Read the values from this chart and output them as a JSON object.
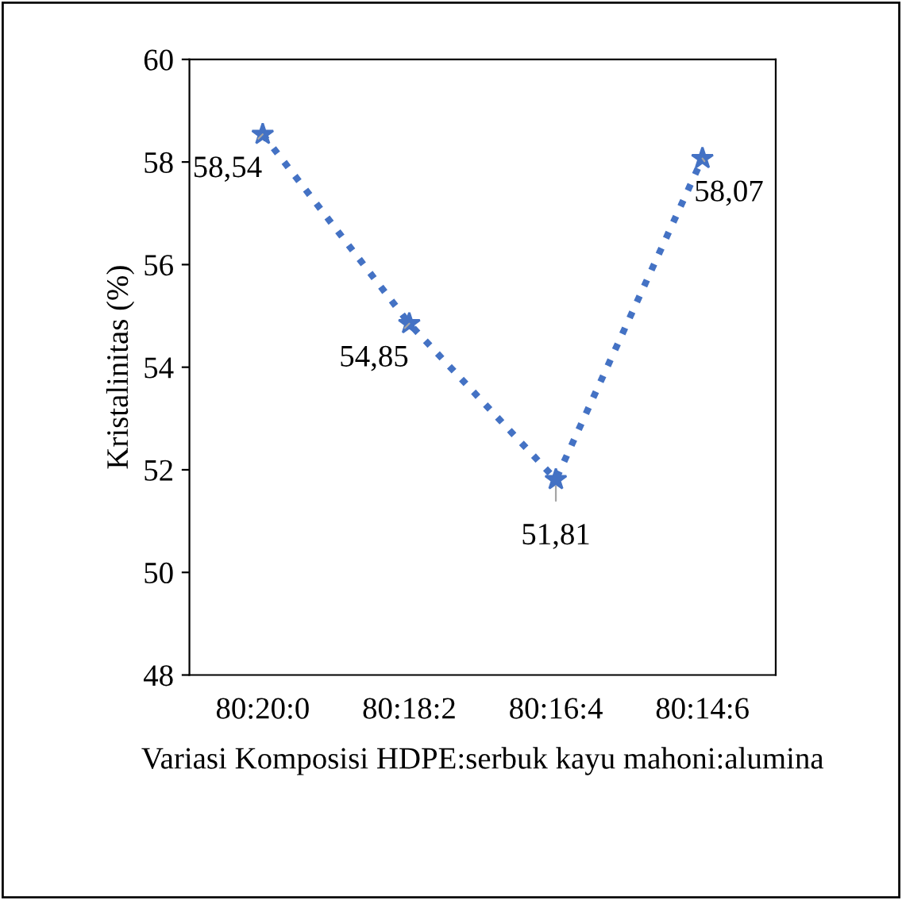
{
  "chart_data": {
    "type": "line",
    "xlabel": "Variasi Komposisi HDPE:serbuk kayu mahoni:alumina",
    "ylabel": "Kristalinitas (%)",
    "categories": [
      "80:20:0",
      "80:18:2",
      "80:16:4",
      "80:14:6"
    ],
    "series": [
      {
        "color": "#4472c4",
        "values": [
          58.54,
          54.85,
          51.81,
          58.07
        ],
        "value_labels": [
          "58,54",
          "54,85",
          "51,81",
          "58,07"
        ]
      }
    ],
    "ylim": [
      48,
      60
    ],
    "yticks": [
      48,
      50,
      52,
      54,
      56,
      58,
      60
    ],
    "marker": "star",
    "line_style": "dotted",
    "grid": false
  }
}
